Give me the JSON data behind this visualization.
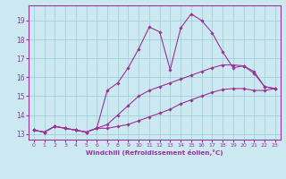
{
  "xlabel": "Windchill (Refroidissement éolien,°C)",
  "bg_color": "#cce8f0",
  "grid_color": "#99ccd8",
  "line_color": "#993399",
  "xlim": [
    -0.5,
    23.5
  ],
  "ylim": [
    12.7,
    19.8
  ],
  "xticks": [
    0,
    1,
    2,
    3,
    4,
    5,
    6,
    7,
    8,
    9,
    10,
    11,
    12,
    13,
    14,
    15,
    16,
    17,
    18,
    19,
    20,
    21,
    22,
    23
  ],
  "yticks": [
    13,
    14,
    15,
    16,
    17,
    18,
    19
  ],
  "line1_x": [
    0,
    1,
    2,
    3,
    4,
    5,
    6,
    7,
    8,
    9,
    10,
    11,
    12,
    13,
    14,
    15,
    16,
    17,
    18,
    19,
    20,
    21,
    22,
    23
  ],
  "line1_y": [
    13.2,
    13.1,
    13.4,
    13.3,
    13.2,
    13.1,
    13.3,
    15.3,
    15.7,
    16.5,
    17.5,
    18.65,
    18.4,
    16.4,
    18.6,
    19.35,
    19.0,
    18.35,
    17.35,
    16.5,
    16.6,
    16.2,
    15.5,
    15.4
  ],
  "line2_x": [
    0,
    1,
    2,
    3,
    4,
    5,
    6,
    7,
    8,
    9,
    10,
    11,
    12,
    13,
    14,
    15,
    16,
    17,
    18,
    19,
    20,
    21,
    22,
    23
  ],
  "line2_y": [
    13.2,
    13.1,
    13.4,
    13.3,
    13.2,
    13.1,
    13.3,
    13.5,
    14.0,
    14.5,
    15.0,
    15.3,
    15.5,
    15.7,
    15.9,
    16.1,
    16.3,
    16.5,
    16.65,
    16.65,
    16.6,
    16.3,
    15.5,
    15.4
  ],
  "line3_x": [
    0,
    1,
    2,
    3,
    4,
    5,
    6,
    7,
    8,
    9,
    10,
    11,
    12,
    13,
    14,
    15,
    16,
    17,
    18,
    19,
    20,
    21,
    22,
    23
  ],
  "line3_y": [
    13.2,
    13.1,
    13.4,
    13.3,
    13.2,
    13.1,
    13.3,
    13.3,
    13.4,
    13.5,
    13.7,
    13.9,
    14.1,
    14.3,
    14.6,
    14.8,
    15.0,
    15.2,
    15.35,
    15.4,
    15.4,
    15.3,
    15.3,
    15.4
  ]
}
